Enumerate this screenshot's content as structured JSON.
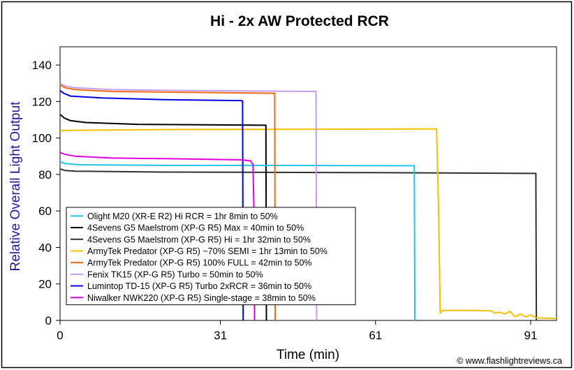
{
  "chart_data": {
    "type": "line",
    "title": "Hi - 2x AW Protected RCR",
    "xlabel": "Time (min)",
    "ylabel": "Relative Overall Light Output",
    "xlim": [
      0,
      96
    ],
    "ylim": [
      0,
      150
    ],
    "xticks": [
      0,
      31,
      61,
      91
    ],
    "yticks": [
      0,
      20,
      40,
      60,
      80,
      100,
      120,
      140
    ],
    "grid": false,
    "legend_position": "lower-left",
    "credit": "© www.flashlightreviews.ca",
    "series": [
      {
        "name": "Olight M20 (XR-E R2) Hi RCR = 1hr 8min to 50%",
        "color": "#22c4e8",
        "points": [
          [
            0,
            87
          ],
          [
            1,
            86
          ],
          [
            4,
            85.3
          ],
          [
            20,
            85
          ],
          [
            40,
            85
          ],
          [
            68.5,
            84.8
          ],
          [
            68.6,
            0
          ]
        ]
      },
      {
        "name": "4Sevens G5 Maelstrom (XP-G R5) Max = 40min to 50%",
        "color": "#000000",
        "points": [
          [
            0,
            113
          ],
          [
            0.8,
            111
          ],
          [
            2,
            109.5
          ],
          [
            5,
            108.5
          ],
          [
            15,
            107.5
          ],
          [
            30,
            107.2
          ],
          [
            39.8,
            107
          ],
          [
            39.9,
            0
          ]
        ]
      },
      {
        "name": "4Sevens G5 Maelstrom (XP-G R5) Hi = 1hr 32min to 50%",
        "color": "#303030",
        "points": [
          [
            0,
            83
          ],
          [
            1,
            82.2
          ],
          [
            3,
            81.8
          ],
          [
            20,
            81.3
          ],
          [
            60,
            81
          ],
          [
            92,
            80.6
          ],
          [
            92.1,
            0
          ]
        ]
      },
      {
        "name": "ArmyTek Predator (XP-G R5) ~70% SEMI = 1hr 13min to 50%",
        "color": "#f5c000",
        "points": [
          [
            0,
            104
          ],
          [
            2,
            104.2
          ],
          [
            20,
            104.6
          ],
          [
            50,
            104.8
          ],
          [
            72,
            105
          ],
          [
            72.8,
            105
          ],
          [
            73.2,
            60
          ],
          [
            73.5,
            4
          ],
          [
            74,
            5.5
          ],
          [
            80,
            5.5
          ],
          [
            83.5,
            5.2
          ],
          [
            84,
            4
          ],
          [
            85,
            4.5
          ],
          [
            86,
            3.5
          ],
          [
            87,
            5
          ],
          [
            88,
            2
          ],
          [
            89,
            3.5
          ],
          [
            90,
            2
          ],
          [
            91,
            3
          ],
          [
            92,
            1.5
          ],
          [
            96,
            1
          ]
        ]
      },
      {
        "name": "ArmyTek Predator (XP-G R5) 100% FULL = 42min to 50%",
        "color": "#f26a10",
        "points": [
          [
            0,
            129
          ],
          [
            1,
            127.5
          ],
          [
            3,
            126.5
          ],
          [
            10,
            125.5
          ],
          [
            25,
            125
          ],
          [
            41.5,
            124.5
          ],
          [
            41.6,
            0
          ]
        ]
      },
      {
        "name": "Fenix TK15 (XP-G R5) Turbo = 50min to 50%",
        "color": "#c49cf2",
        "points": [
          [
            0,
            130
          ],
          [
            1,
            128.5
          ],
          [
            3,
            127.5
          ],
          [
            10,
            126.5
          ],
          [
            25,
            126
          ],
          [
            49.5,
            125.5
          ],
          [
            49.6,
            0
          ]
        ]
      },
      {
        "name": "Lumintop TD-15 (XP-G R5) Turbo 2xRCR = 36min to 50%",
        "color": "#0000e0",
        "points": [
          [
            0,
            126
          ],
          [
            0.7,
            124.5
          ],
          [
            2,
            123
          ],
          [
            8,
            122
          ],
          [
            20,
            121
          ],
          [
            35,
            120.5
          ],
          [
            35.3,
            120.3
          ],
          [
            35.4,
            0
          ]
        ]
      },
      {
        "name": "Niwalker NWK220 (XP-G R5) Single-stage = 38min to 50%",
        "color": "#e000e0",
        "points": [
          [
            0,
            92
          ],
          [
            1,
            91
          ],
          [
            3,
            90
          ],
          [
            10,
            89
          ],
          [
            25,
            88.5
          ],
          [
            35,
            88
          ],
          [
            36.8,
            87.5
          ],
          [
            37.3,
            85.5
          ],
          [
            37.5,
            60
          ],
          [
            37.6,
            0
          ]
        ]
      }
    ]
  }
}
